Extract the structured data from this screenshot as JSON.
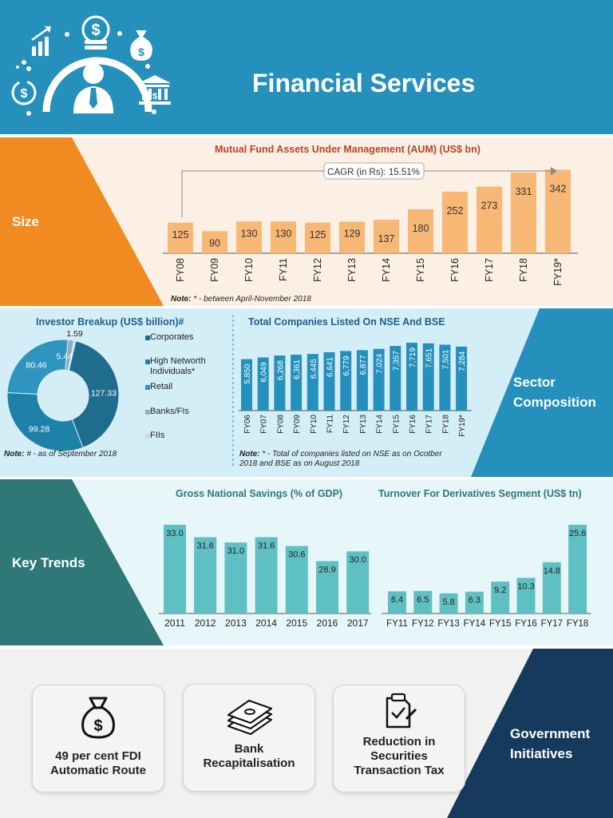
{
  "header": {
    "title": "Financial Services"
  },
  "colors": {
    "header_bg": "#2590bb",
    "size_orange": "#f08a21",
    "aum_bar": "#f7b775",
    "sector_blue": "#2590bb",
    "companies_bar": "#2590bb",
    "key_trends_teal": "#2f7878",
    "trends_bar": "#5fc0c4",
    "gov_navy": "#163a5c"
  },
  "icons": [
    "growth-chart-icon",
    "money-stack-icon",
    "money-bag-icon",
    "clock-dollar-icon",
    "businessman-icon",
    "bank-icon"
  ],
  "size": {
    "label": "Size",
    "note_label": "Note:",
    "note_text": "* - between April-November 2018"
  },
  "sector": {
    "label_line1": "Sector",
    "label_line2": "Composition",
    "investor_note_label": "Note:",
    "investor_note_text": "# - as of September 2018",
    "companies_note_label": "Note:",
    "companies_note_text_1": "* - Total of companies listed on NSE as on Ocotber",
    "companies_note_text_2": "2018 and BSE as on August 2018"
  },
  "key_trends": {
    "label": "Key Trends"
  },
  "government": {
    "label_line1": "Government",
    "label_line2": "Initiatives",
    "cards": [
      {
        "line1": "49 per cent FDI",
        "line2": "Automatic Route",
        "icon": "money-bag-icon"
      },
      {
        "line1": "Bank",
        "line2": "Recapitalisation",
        "icon": "cash-stack-icon"
      },
      {
        "line1": "Reduction in",
        "line2": "Securities",
        "line3": "Transaction Tax",
        "icon": "document-check-icon"
      }
    ]
  },
  "chart_data": [
    {
      "type": "bar",
      "title": "Mutual Fund Assets Under Management (AUM) (US$ bn)",
      "categories": [
        "FY08",
        "FY09",
        "FY10",
        "FY11",
        "FY12",
        "FY13",
        "FY14",
        "FY15",
        "FY16",
        "FY17",
        "FY18",
        "FY19*"
      ],
      "values": [
        125,
        90,
        130,
        130,
        125,
        129,
        137,
        180,
        252,
        273,
        331,
        342
      ],
      "annotation": "CAGR (in Rs): 15.51%",
      "ylim": [
        0,
        360
      ],
      "color": "#f7b775"
    },
    {
      "type": "pie",
      "title": "Investor Breakup (US$ billion)#",
      "labels": [
        "Corporates",
        "High Networth Individuals*",
        "Retail",
        "Banks/FIs",
        "FIIs"
      ],
      "values": [
        127.33,
        99.28,
        80.46,
        5.44,
        1.59
      ],
      "colors": [
        "#1f6c8e",
        "#1e82a8",
        "#2e95bf",
        "#8eadc4",
        "#c8dbe6"
      ],
      "legend": "right"
    },
    {
      "type": "bar",
      "title": "Total Companies Listed On NSE And BSE",
      "categories": [
        "FY06",
        "FY07",
        "FY08",
        "FY09",
        "FY10",
        "FY11",
        "FY12",
        "FY13",
        "FY14",
        "FY15",
        "FY16",
        "FY17",
        "FY18",
        "FY19*"
      ],
      "values": [
        5850,
        6049,
        6268,
        6361,
        6445,
        6641,
        6779,
        6877,
        7024,
        7357,
        7719,
        7651,
        7501,
        7284
      ],
      "value_labels": [
        "5,850",
        "6,049",
        "6,268",
        "6,361",
        "6,445",
        "6,641",
        "6,779",
        "6,877",
        "7,024",
        "7,357",
        "7,719",
        "7,651",
        "7,501",
        "7,284"
      ],
      "ylim": [
        0,
        8000
      ],
      "color": "#2590bb"
    },
    {
      "type": "bar",
      "title": "Gross National Savings (% of GDP)",
      "categories": [
        "2011",
        "2012",
        "2013",
        "2014",
        "2015",
        "2016",
        "2017"
      ],
      "values": [
        33.0,
        31.6,
        31.0,
        31.6,
        30.6,
        28.9,
        30.0
      ],
      "value_labels": [
        "33.0",
        "31.6",
        "31.0",
        "31.6",
        "30.6",
        "28.9",
        "30.0"
      ],
      "ylim": [
        23,
        33.8
      ],
      "color": "#5fc0c4"
    },
    {
      "type": "bar",
      "title": "Turnover For Derivatives Segment (US$ tn)",
      "categories": [
        "FY11",
        "FY12",
        "FY13",
        "FY14",
        "FY15",
        "FY16",
        "FY17",
        "FY18"
      ],
      "values": [
        6.4,
        6.5,
        5.8,
        6.3,
        9.2,
        10.3,
        14.8,
        25.6
      ],
      "value_labels": [
        "6.4",
        "6.5",
        "5.8",
        "6.3",
        "9.2",
        "10.3",
        "14.8",
        "25.6"
      ],
      "ylim": [
        0,
        26.5
      ],
      "color": "#5fc0c4"
    }
  ]
}
